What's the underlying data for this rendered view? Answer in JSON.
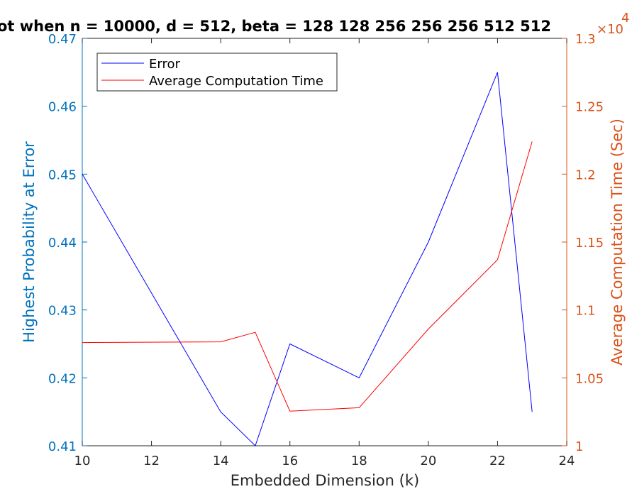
{
  "chart_data": {
    "type": "line",
    "title": "ot when n = 10000, d = 512, beta = 128  128  256  256  256  512  512",
    "xlabel": "Embedded Dimension (k)",
    "ylabel_left": "Highest Probability at Error",
    "ylabel_right": "Average Computation Time (Sec)",
    "right_exponent_base": "×10",
    "right_exponent_power": "4",
    "xlim": [
      10,
      24
    ],
    "ylim_left": [
      0.41,
      0.47
    ],
    "ylim_right": [
      1.0,
      1.3
    ],
    "x_ticks": [
      "10",
      "12",
      "14",
      "16",
      "18",
      "20",
      "22",
      "24"
    ],
    "y_left_ticks": [
      "0.41",
      "0.42",
      "0.43",
      "0.44",
      "0.45",
      "0.46",
      "0.47"
    ],
    "y_right_ticks": [
      "1",
      "1.05",
      "1.1",
      "1.15",
      "1.2",
      "1.25",
      "1.3"
    ],
    "legend_position": "top-left",
    "series": [
      {
        "name": "Error",
        "axis": "left",
        "color": "#0000ff",
        "x": [
          10,
          14,
          15,
          16,
          18,
          20,
          22,
          23
        ],
        "values": [
          0.45,
          0.415,
          0.41,
          0.425,
          0.42,
          0.44,
          0.465,
          0.415
        ]
      },
      {
        "name": "Average Computation Time",
        "axis": "right",
        "color": "#ff0000",
        "x": [
          10,
          14,
          15,
          16,
          18,
          20,
          22,
          23
        ],
        "values": [
          1.076,
          1.0765,
          1.0835,
          1.0255,
          1.028,
          1.086,
          1.137,
          1.224
        ]
      }
    ],
    "colors": {
      "left_axis": "#0072BD",
      "right_axis": "#D95319",
      "bottom_axis": "#262626"
    }
  }
}
